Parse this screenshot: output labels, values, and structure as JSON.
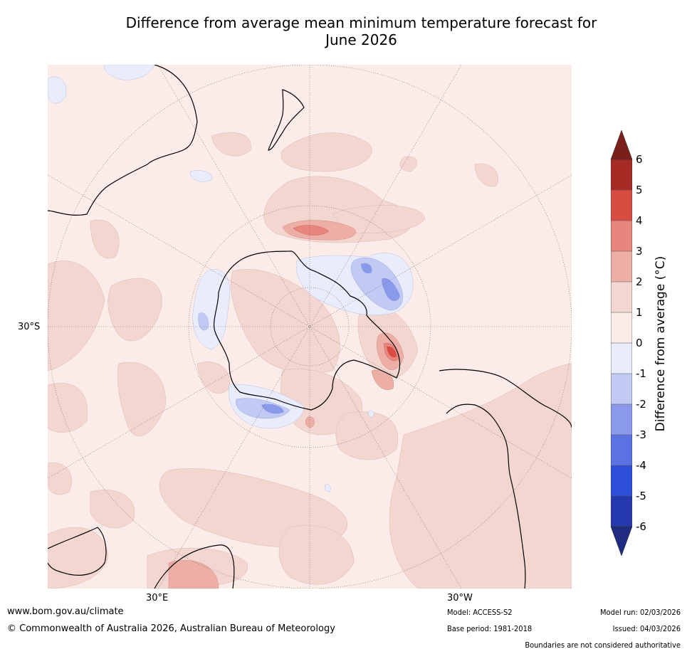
{
  "title": {
    "line1": "Difference from average mean minimum temperature forecast for",
    "line2": "June 2026"
  },
  "map": {
    "projection": "South polar stereographic",
    "lat_labels": [
      "30°S"
    ],
    "lon_labels": [
      "30°E",
      "30°W"
    ],
    "continents": [
      "Antarctica",
      "Australia",
      "New Zealand",
      "South America",
      "Africa"
    ]
  },
  "colorbar": {
    "label": "Difference from average (°C)",
    "ticks": [
      "6",
      "5",
      "4",
      "3",
      "2",
      "1",
      "0",
      "-1",
      "-2",
      "-3",
      "-4",
      "-5",
      "-6"
    ],
    "colors": {
      "above_6": "#7a1f1a",
      "5_to_6": "#a82a25",
      "4_to_5": "#d94c42",
      "3_to_4": "#e8857d",
      "2_to_3": "#edaea6",
      "1_to_2": "#f4d6d1",
      "0_to_1": "#fbece9",
      "m1_to_0": "#e8ecfb",
      "m2_to_m1": "#c2c9f2",
      "m3_to_m2": "#8a99ea",
      "m4_to_m3": "#5b71e4",
      "m5_to_m4": "#2d4fdc",
      "m6_to_m5": "#2638ae",
      "below_m6": "#1e2b80"
    }
  },
  "footer": {
    "website": "www.bom.gov.au/climate",
    "copyright": "© Commonwealth of Australia 2026, Australian Bureau of Meteorology",
    "model": "Model: ACCESS-S2",
    "base_period": "Base period: 1981-2018",
    "model_run": "Model run: 02/03/2026",
    "issued": "Issued: 04/03/2026",
    "disclaimer": "Boundaries are not considered authoritative"
  }
}
